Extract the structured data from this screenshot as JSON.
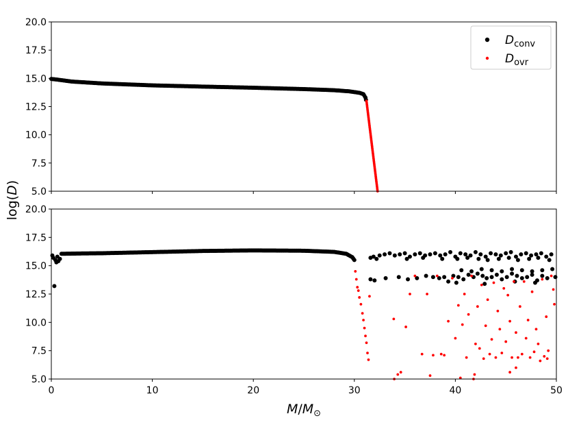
{
  "chart_data": [
    {
      "type": "scatter",
      "panel": "top",
      "xlim": [
        0,
        50
      ],
      "ylim": [
        5.0,
        20.0
      ],
      "yticks": [
        "5.0",
        "7.5",
        "10.0",
        "12.5",
        "15.0",
        "17.5",
        "20.0"
      ],
      "ylabel_main": "log(",
      "ylabel_var": "D",
      "ylabel_end": ")",
      "legend": {
        "placement": "top-right",
        "entries": [
          {
            "main": "D",
            "sub": "conv",
            "color": "#000000"
          },
          {
            "main": "D",
            "sub": "ovr",
            "color": "#ff0000"
          }
        ]
      },
      "series": [
        {
          "name": "D_conv",
          "color": "#000000",
          "marker_size": "large",
          "segments": [
            {
              "kind": "curve",
              "x_start": 0.0,
              "x_end": 31.1,
              "step": 0.1,
              "knots": [
                [
                  0.0,
                  14.95
                ],
                [
                  0.5,
                  14.9
                ],
                [
                  2,
                  14.72
                ],
                [
                  5,
                  14.55
                ],
                [
                  10,
                  14.38
                ],
                [
                  15,
                  14.27
                ],
                [
                  20,
                  14.17
                ],
                [
                  25,
                  14.05
                ],
                [
                  28,
                  13.95
                ],
                [
                  29.5,
                  13.85
                ],
                [
                  30.5,
                  13.72
                ],
                [
                  30.9,
                  13.6
                ],
                [
                  31.1,
                  13.3
                ]
              ]
            }
          ],
          "points": [
            [
              31.15,
              13.1
            ]
          ]
        },
        {
          "name": "D_ovr",
          "color": "#ff0000",
          "marker_size": "small",
          "segments": [
            {
              "kind": "line",
              "x_start": 31.2,
              "x_end": 32.3,
              "y_start": 13.0,
              "y_end": 5.0,
              "step": 0.02
            }
          ],
          "points": []
        }
      ]
    },
    {
      "type": "scatter",
      "panel": "bottom",
      "xlim": [
        0,
        50
      ],
      "ylim": [
        5.0,
        20.0
      ],
      "xticks": [
        "0",
        "10",
        "20",
        "30",
        "40",
        "50"
      ],
      "yticks": [
        "5.0",
        "7.5",
        "10.0",
        "12.5",
        "15.0",
        "17.5",
        "20.0"
      ],
      "xlabel_main": "M",
      "xlabel_sep": "/",
      "xlabel_sub_base": "M",
      "xlabel_sub": "⊙",
      "series": [
        {
          "name": "D_conv",
          "color": "#000000",
          "marker_size": "large",
          "segments": [
            {
              "kind": "curve",
              "x_start": 1.0,
              "x_end": 30.0,
              "step": 0.1,
              "knots": [
                [
                  1.0,
                  16.05
                ],
                [
                  3,
                  16.08
                ],
                [
                  5,
                  16.1
                ],
                [
                  10,
                  16.2
                ],
                [
                  15,
                  16.3
                ],
                [
                  20,
                  16.35
                ],
                [
                  25,
                  16.32
                ],
                [
                  28,
                  16.22
                ],
                [
                  29.2,
                  16.05
                ],
                [
                  29.8,
                  15.75
                ],
                [
                  30.0,
                  15.5
                ]
              ]
            }
          ],
          "points": [
            [
              0.1,
              15.9
            ],
            [
              0.2,
              15.7
            ],
            [
              0.3,
              13.2
            ],
            [
              0.4,
              15.5
            ],
            [
              0.5,
              15.3
            ],
            [
              0.6,
              15.8
            ],
            [
              0.7,
              15.4
            ],
            [
              0.85,
              15.6
            ],
            [
              31.6,
              15.7
            ],
            [
              31.9,
              15.8
            ],
            [
              32.2,
              15.6
            ],
            [
              32.5,
              15.9
            ],
            [
              33.0,
              16.0
            ],
            [
              33.5,
              16.1
            ],
            [
              34.0,
              15.9
            ],
            [
              34.5,
              16.0
            ],
            [
              35.0,
              16.1
            ],
            [
              35.5,
              15.8
            ],
            [
              36.0,
              16.0
            ],
            [
              36.5,
              16.1
            ],
            [
              37.0,
              15.9
            ],
            [
              37.5,
              16.0
            ],
            [
              38.0,
              16.1
            ],
            [
              38.5,
              15.9
            ],
            [
              39.0,
              16.0
            ],
            [
              39.5,
              16.2
            ],
            [
              40.0,
              15.8
            ],
            [
              40.5,
              16.1
            ],
            [
              41.0,
              16.0
            ],
            [
              41.5,
              15.9
            ],
            [
              42.0,
              16.2
            ],
            [
              42.5,
              16.0
            ],
            [
              43.0,
              15.8
            ],
            [
              43.5,
              16.1
            ],
            [
              44.0,
              16.0
            ],
            [
              44.5,
              15.9
            ],
            [
              45.0,
              16.1
            ],
            [
              45.5,
              16.2
            ],
            [
              46.0,
              15.8
            ],
            [
              46.5,
              16.0
            ],
            [
              47.0,
              16.1
            ],
            [
              47.5,
              15.9
            ],
            [
              48.0,
              16.0
            ],
            [
              48.5,
              16.1
            ],
            [
              49.0,
              15.8
            ],
            [
              49.5,
              16.0
            ],
            [
              40.2,
              15.6
            ],
            [
              41.2,
              15.7
            ],
            [
              42.3,
              15.6
            ],
            [
              43.2,
              15.5
            ],
            [
              44.3,
              15.6
            ],
            [
              45.3,
              15.7
            ],
            [
              46.2,
              15.5
            ],
            [
              47.3,
              15.6
            ],
            [
              48.2,
              15.7
            ],
            [
              49.3,
              15.5
            ],
            [
              38.7,
              15.6
            ],
            [
              36.8,
              15.7
            ],
            [
              35.2,
              15.6
            ],
            [
              31.6,
              13.8
            ],
            [
              32.0,
              13.7
            ],
            [
              33.1,
              13.9
            ],
            [
              34.4,
              14.0
            ],
            [
              35.3,
              13.8
            ],
            [
              36.2,
              13.9
            ],
            [
              37.1,
              14.1
            ],
            [
              37.8,
              14.0
            ],
            [
              38.4,
              13.9
            ],
            [
              38.9,
              14.0
            ],
            [
              39.3,
              13.6
            ],
            [
              39.8,
              14.1
            ],
            [
              40.3,
              14.0
            ],
            [
              40.8,
              13.8
            ],
            [
              41.3,
              14.2
            ],
            [
              41.8,
              14.0
            ],
            [
              42.2,
              14.3
            ],
            [
              42.7,
              14.1
            ],
            [
              43.1,
              13.9
            ],
            [
              43.6,
              14.0
            ],
            [
              44.1,
              14.2
            ],
            [
              44.6,
              13.8
            ],
            [
              45.1,
              14.0
            ],
            [
              45.6,
              14.3
            ],
            [
              46.1,
              14.1
            ],
            [
              46.6,
              13.9
            ],
            [
              47.1,
              14.0
            ],
            [
              47.6,
              14.2
            ],
            [
              48.1,
              13.7
            ],
            [
              48.6,
              14.1
            ],
            [
              49.1,
              13.9
            ],
            [
              49.9,
              14.0
            ],
            [
              40.6,
              14.6
            ],
            [
              41.6,
              14.5
            ],
            [
              42.6,
              14.7
            ],
            [
              43.6,
              14.6
            ],
            [
              44.6,
              14.5
            ],
            [
              45.6,
              14.7
            ],
            [
              46.6,
              14.6
            ],
            [
              47.6,
              14.5
            ],
            [
              48.6,
              14.6
            ],
            [
              49.6,
              14.7
            ],
            [
              40.1,
              13.5
            ],
            [
              42.9,
              13.4
            ],
            [
              45.9,
              13.6
            ],
            [
              47.9,
              13.5
            ]
          ]
        },
        {
          "name": "D_ovr",
          "color": "#ff0000",
          "marker_size": "small",
          "segments": [],
          "points": [
            [
              30.1,
              14.5
            ],
            [
              30.2,
              13.8
            ],
            [
              30.3,
              13.1
            ],
            [
              30.4,
              12.8
            ],
            [
              30.5,
              12.2
            ],
            [
              30.65,
              11.6
            ],
            [
              30.8,
              10.8
            ],
            [
              30.9,
              10.2
            ],
            [
              31.0,
              9.5
            ],
            [
              31.1,
              8.8
            ],
            [
              31.2,
              8.2
            ],
            [
              31.3,
              7.3
            ],
            [
              31.4,
              6.7
            ],
            [
              31.5,
              12.3
            ],
            [
              33.9,
              10.3
            ],
            [
              33.95,
              5.0
            ],
            [
              34.3,
              5.4
            ],
            [
              34.6,
              5.6
            ],
            [
              35.1,
              9.6
            ],
            [
              35.5,
              12.5
            ],
            [
              36.0,
              14.1
            ],
            [
              36.7,
              7.2
            ],
            [
              37.2,
              12.5
            ],
            [
              37.5,
              5.3
            ],
            [
              37.8,
              7.1
            ],
            [
              38.2,
              14.1
            ],
            [
              38.6,
              7.2
            ],
            [
              38.9,
              7.1
            ],
            [
              39.3,
              10.1
            ],
            [
              39.7,
              13.9
            ],
            [
              40.0,
              8.6
            ],
            [
              40.3,
              11.5
            ],
            [
              40.5,
              5.1
            ],
            [
              40.7,
              9.8
            ],
            [
              40.9,
              12.5
            ],
            [
              41.1,
              6.9
            ],
            [
              41.3,
              10.7
            ],
            [
              41.6,
              14.1
            ],
            [
              41.8,
              5.0
            ],
            [
              42.0,
              8.1
            ],
            [
              42.2,
              11.4
            ],
            [
              42.4,
              7.7
            ],
            [
              42.6,
              13.3
            ],
            [
              42.8,
              6.8
            ],
            [
              43.0,
              9.7
            ],
            [
              43.2,
              12.0
            ],
            [
              43.4,
              7.2
            ],
            [
              43.6,
              8.5
            ],
            [
              43.8,
              13.5
            ],
            [
              44.0,
              6.9
            ],
            [
              44.2,
              11.0
            ],
            [
              44.4,
              9.4
            ],
            [
              44.6,
              7.3
            ],
            [
              44.8,
              13.0
            ],
            [
              45.0,
              8.3
            ],
            [
              45.2,
              12.4
            ],
            [
              45.4,
              10.1
            ],
            [
              45.6,
              6.9
            ],
            [
              45.8,
              13.6
            ],
            [
              46.0,
              9.1
            ],
            [
              46.2,
              6.9
            ],
            [
              46.4,
              11.4
            ],
            [
              46.6,
              7.2
            ],
            [
              46.8,
              13.6
            ],
            [
              47.0,
              8.6
            ],
            [
              47.2,
              10.2
            ],
            [
              47.4,
              6.9
            ],
            [
              47.6,
              12.7
            ],
            [
              47.8,
              7.4
            ],
            [
              48.0,
              9.4
            ],
            [
              48.2,
              8.1
            ],
            [
              48.4,
              6.6
            ],
            [
              48.6,
              13.8
            ],
            [
              48.8,
              7.0
            ],
            [
              49.0,
              10.5
            ],
            [
              49.2,
              7.5
            ],
            [
              49.5,
              14.1
            ],
            [
              49.7,
              12.9
            ],
            [
              49.8,
              11.6
            ],
            [
              45.4,
              5.6
            ],
            [
              46.0,
              6.0
            ],
            [
              41.9,
              5.4
            ],
            [
              49.1,
              6.8
            ]
          ]
        }
      ]
    }
  ]
}
